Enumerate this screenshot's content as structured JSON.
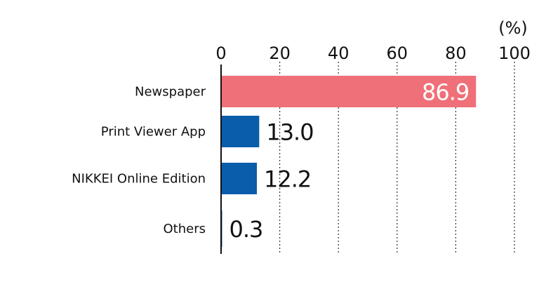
{
  "chart_data": {
    "type": "bar",
    "orientation": "horizontal",
    "categories": [
      "Newspaper",
      "Print Viewer App",
      "NIKKEI Online Edition",
      "Others"
    ],
    "values": [
      86.9,
      13.0,
      12.2,
      0.3
    ],
    "value_labels": [
      "86.9",
      "13.0",
      "12.2",
      "0.3"
    ],
    "xlim": [
      0,
      100
    ],
    "xticks": [
      "0",
      "20",
      "40",
      "60",
      "80",
      "100"
    ],
    "unit": "(%)",
    "grid": "vertical dotted",
    "colors": [
      "#F07079",
      "#0A5DAA",
      "#0A5DAA",
      "#0A5DAA"
    ],
    "value_label_colors": [
      "#FFFFFF",
      "#111111",
      "#111111",
      "#111111"
    ],
    "value_label_placement": [
      "inside-end",
      "outside-end",
      "outside-end",
      "outside-end"
    ]
  }
}
